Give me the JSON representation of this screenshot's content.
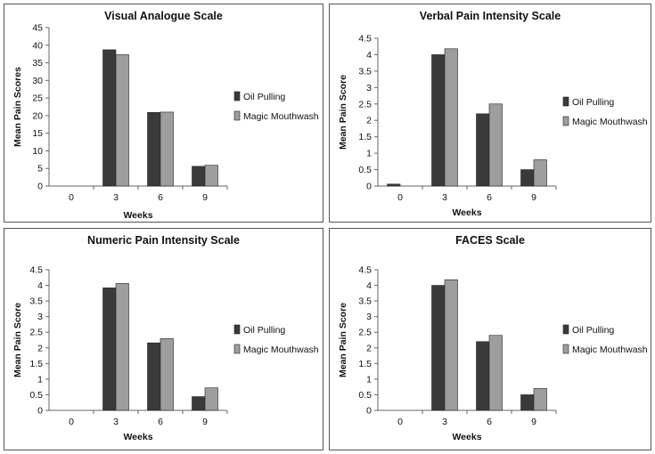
{
  "colors": {
    "oil_pulling": "#3a3a3a",
    "magic_mouthwash": "#9e9e9e",
    "axis": "#666666"
  },
  "chart_data": [
    {
      "type": "bar",
      "title": "Visual Analogue Scale",
      "xlabel": "Weeks",
      "ylabel": "Mean Pain Scores",
      "categories": [
        "0",
        "3",
        "6",
        "9"
      ],
      "ylim": [
        0,
        45
      ],
      "yticks": [
        "0",
        "5",
        "10",
        "15",
        "20",
        "25",
        "30",
        "35",
        "40",
        "45"
      ],
      "ytick_values": [
        0,
        5,
        10,
        15,
        20,
        25,
        30,
        35,
        40,
        45
      ],
      "grid": false,
      "legend": "right",
      "series": [
        {
          "name": "Oil Pulling",
          "values": [
            0,
            38.7,
            20.9,
            5.6
          ]
        },
        {
          "name": "Magic Mouthwash",
          "values": [
            0,
            37.3,
            21.0,
            5.9
          ]
        }
      ]
    },
    {
      "type": "bar",
      "title": "Verbal Pain Intensity Scale",
      "xlabel": "Weeks",
      "ylabel": "Mean Pain Score",
      "categories": [
        "0",
        "3",
        "6",
        "9"
      ],
      "ylim": [
        0,
        4.5
      ],
      "yticks": [
        "0",
        "0.5",
        "1",
        "1.5",
        "2",
        "2.5",
        "3",
        "3.5",
        "4",
        "4.5"
      ],
      "ytick_values": [
        0,
        0.5,
        1,
        1.5,
        2,
        2.5,
        3,
        3.5,
        4,
        4.5
      ],
      "grid": false,
      "legend": "right",
      "series": [
        {
          "name": "Oil Pulling",
          "values": [
            0.06,
            4.0,
            2.2,
            0.5
          ]
        },
        {
          "name": "Magic Mouthwash",
          "values": [
            0,
            4.18,
            2.5,
            0.8
          ]
        }
      ]
    },
    {
      "type": "bar",
      "title": "Numeric Pain Intensity Scale",
      "xlabel": "Weeks",
      "ylabel": "Mean Pain Score",
      "categories": [
        "0",
        "3",
        "6",
        "9"
      ],
      "ylim": [
        0,
        4.5
      ],
      "yticks": [
        "0",
        "0.5",
        "1",
        "1.5",
        "2",
        "2.5",
        "3",
        "3.5",
        "4",
        "4.5"
      ],
      "ytick_values": [
        0,
        0.5,
        1,
        1.5,
        2,
        2.5,
        3,
        3.5,
        4,
        4.5
      ],
      "grid": false,
      "legend": "right",
      "series": [
        {
          "name": "Oil Pulling",
          "values": [
            0,
            3.92,
            2.16,
            0.44
          ]
        },
        {
          "name": "Magic Mouthwash",
          "values": [
            0,
            4.06,
            2.3,
            0.72
          ]
        }
      ]
    },
    {
      "type": "bar",
      "title": "FACES Scale",
      "xlabel": "Weeks",
      "ylabel": "Mean Pain Score",
      "categories": [
        "0",
        "3",
        "6",
        "9"
      ],
      "ylim": [
        0,
        4.5
      ],
      "yticks": [
        "0",
        "0.5",
        "1",
        "1.5",
        "2",
        "2.5",
        "3",
        "3.5",
        "4",
        "4.5"
      ],
      "ytick_values": [
        0,
        0.5,
        1,
        1.5,
        2,
        2.5,
        3,
        3.5,
        4,
        4.5
      ],
      "grid": false,
      "legend": "right",
      "series": [
        {
          "name": "Oil Pulling",
          "values": [
            0,
            4.0,
            2.2,
            0.5
          ]
        },
        {
          "name": "Magic Mouthwash",
          "values": [
            0,
            4.18,
            2.4,
            0.7
          ]
        }
      ]
    }
  ]
}
